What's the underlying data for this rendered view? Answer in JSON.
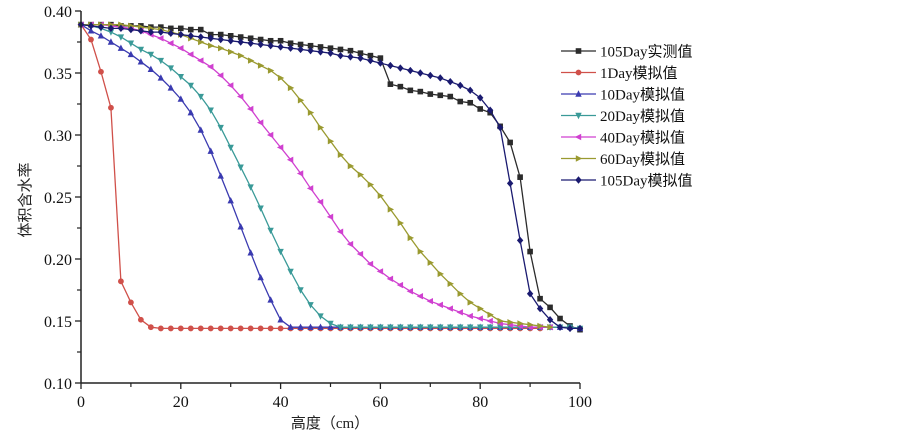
{
  "chart_data": {
    "type": "line",
    "title": "",
    "xlabel": "高度（cm）",
    "ylabel": "体积含水率",
    "xlim": [
      0,
      100
    ],
    "ylim": [
      0.1,
      0.4
    ],
    "xticks": [
      0,
      20,
      40,
      60,
      80,
      100
    ],
    "xtick_labels": [
      "0",
      "20",
      "40",
      "60",
      "80",
      "100"
    ],
    "yticks": [
      0.1,
      0.15,
      0.2,
      0.25,
      0.3,
      0.35,
      0.4
    ],
    "ytick_labels": [
      "0.10",
      "0.15",
      "0.20",
      "0.25",
      "0.30",
      "0.35",
      "0.40"
    ],
    "grid": false,
    "legend_position": "top-right",
    "series": [
      {
        "name": "105Day实测值",
        "color": "#2b2b2b",
        "marker": "square",
        "x": [
          0,
          2,
          4,
          6,
          8,
          10,
          12,
          14,
          16,
          18,
          20,
          22,
          24,
          26,
          28,
          30,
          32,
          34,
          36,
          38,
          40,
          42,
          44,
          46,
          48,
          50,
          52,
          54,
          56,
          58,
          60,
          62,
          64,
          66,
          68,
          70,
          72,
          74,
          76,
          78,
          80,
          82,
          84,
          86,
          88,
          90,
          92,
          94,
          96,
          98,
          100
        ],
        "y": [
          0.389,
          0.389,
          0.389,
          0.389,
          0.388,
          0.388,
          0.388,
          0.387,
          0.387,
          0.386,
          0.386,
          0.385,
          0.385,
          0.381,
          0.381,
          0.38,
          0.379,
          0.378,
          0.377,
          0.376,
          0.376,
          0.374,
          0.373,
          0.372,
          0.371,
          0.37,
          0.369,
          0.368,
          0.366,
          0.364,
          0.362,
          0.341,
          0.339,
          0.336,
          0.335,
          0.333,
          0.332,
          0.331,
          0.327,
          0.326,
          0.321,
          0.318,
          0.307,
          0.294,
          0.266,
          0.206,
          0.168,
          0.161,
          0.152,
          0.146,
          0.143
        ]
      },
      {
        "name": "1Day模拟值",
        "color": "#d0504a",
        "marker": "circle",
        "x": [
          0,
          2,
          4,
          6,
          8,
          10,
          12,
          14,
          16,
          18,
          20,
          22,
          24,
          26,
          28,
          30,
          32,
          34,
          36,
          38,
          40,
          42,
          44,
          46,
          48,
          50,
          52,
          54,
          56,
          58,
          60,
          62,
          64,
          66,
          68,
          70,
          72,
          74,
          76,
          78,
          80,
          82,
          84,
          86,
          88,
          90,
          92
        ],
        "y": [
          0.389,
          0.377,
          0.351,
          0.322,
          0.182,
          0.165,
          0.151,
          0.145,
          0.144,
          0.144,
          0.144,
          0.144,
          0.144,
          0.144,
          0.144,
          0.144,
          0.144,
          0.144,
          0.144,
          0.144,
          0.144,
          0.144,
          0.144,
          0.144,
          0.144,
          0.144,
          0.144,
          0.144,
          0.144,
          0.144,
          0.144,
          0.144,
          0.144,
          0.144,
          0.144,
          0.144,
          0.144,
          0.144,
          0.144,
          0.144,
          0.144,
          0.144,
          0.144,
          0.144,
          0.144,
          0.144,
          0.144
        ]
      },
      {
        "name": "10Day模拟值",
        "color": "#3a3ab0",
        "marker": "triangle-up",
        "x": [
          0,
          2,
          4,
          6,
          8,
          10,
          12,
          14,
          16,
          18,
          20,
          22,
          24,
          26,
          28,
          30,
          32,
          34,
          36,
          38,
          40,
          42,
          44,
          46,
          48,
          50,
          52,
          54,
          56,
          58,
          60,
          62,
          64,
          66,
          68,
          70,
          72,
          74,
          76,
          78,
          80,
          82,
          84,
          86,
          88,
          90,
          92,
          94,
          96,
          98,
          100
        ],
        "y": [
          0.389,
          0.384,
          0.38,
          0.375,
          0.37,
          0.365,
          0.359,
          0.353,
          0.346,
          0.338,
          0.329,
          0.318,
          0.304,
          0.287,
          0.267,
          0.247,
          0.226,
          0.205,
          0.185,
          0.167,
          0.151,
          0.145,
          0.145,
          0.145,
          0.145,
          0.145,
          0.145,
          0.145,
          0.145,
          0.145,
          0.145,
          0.145,
          0.145,
          0.145,
          0.145,
          0.145,
          0.145,
          0.145,
          0.145,
          0.145,
          0.145,
          0.145,
          0.145,
          0.145,
          0.145,
          0.145,
          0.145,
          0.145,
          0.145,
          0.145,
          0.144
        ]
      },
      {
        "name": "20Day模拟值",
        "color": "#3a9a98",
        "marker": "triangle-down",
        "x": [
          0,
          2,
          4,
          6,
          8,
          10,
          12,
          14,
          16,
          18,
          20,
          22,
          24,
          26,
          28,
          30,
          32,
          34,
          36,
          38,
          40,
          42,
          44,
          46,
          48,
          50,
          52,
          54,
          56,
          58,
          60,
          62,
          64,
          66,
          68,
          70,
          72,
          74,
          76,
          78,
          80,
          82,
          84,
          86,
          88,
          90,
          92,
          94,
          96,
          98,
          100
        ],
        "y": [
          0.389,
          0.388,
          0.386,
          0.383,
          0.379,
          0.374,
          0.369,
          0.365,
          0.36,
          0.354,
          0.347,
          0.34,
          0.331,
          0.32,
          0.306,
          0.29,
          0.274,
          0.258,
          0.241,
          0.223,
          0.206,
          0.19,
          0.175,
          0.163,
          0.154,
          0.148,
          0.145,
          0.145,
          0.145,
          0.145,
          0.145,
          0.145,
          0.145,
          0.145,
          0.145,
          0.145,
          0.145,
          0.145,
          0.145,
          0.145,
          0.145,
          0.145,
          0.145,
          0.145,
          0.145,
          0.145,
          0.145,
          0.145,
          0.145,
          0.145,
          0.144
        ]
      },
      {
        "name": "40Day模拟值",
        "color": "#d040d0",
        "marker": "triangle-left",
        "x": [
          0,
          2,
          4,
          6,
          8,
          10,
          12,
          14,
          16,
          18,
          20,
          22,
          24,
          26,
          28,
          30,
          32,
          34,
          36,
          38,
          40,
          42,
          44,
          46,
          48,
          50,
          52,
          54,
          56,
          58,
          60,
          62,
          64,
          66,
          68,
          70,
          72,
          74,
          76,
          78,
          80,
          82,
          84,
          86,
          88,
          90,
          92,
          94
        ],
        "y": [
          0.389,
          0.389,
          0.389,
          0.388,
          0.387,
          0.386,
          0.384,
          0.381,
          0.378,
          0.374,
          0.37,
          0.365,
          0.36,
          0.355,
          0.348,
          0.34,
          0.331,
          0.321,
          0.31,
          0.3,
          0.29,
          0.28,
          0.269,
          0.257,
          0.246,
          0.234,
          0.222,
          0.212,
          0.204,
          0.196,
          0.19,
          0.184,
          0.179,
          0.174,
          0.17,
          0.166,
          0.163,
          0.16,
          0.157,
          0.154,
          0.152,
          0.15,
          0.148,
          0.147,
          0.146,
          0.145,
          0.145,
          0.145
        ]
      },
      {
        "name": "60Day模拟值",
        "color": "#9a9a30",
        "marker": "triangle-right",
        "x": [
          0,
          2,
          4,
          6,
          8,
          10,
          12,
          14,
          16,
          18,
          20,
          22,
          24,
          26,
          28,
          30,
          32,
          34,
          36,
          38,
          40,
          42,
          44,
          46,
          48,
          50,
          52,
          54,
          56,
          58,
          60,
          62,
          64,
          66,
          68,
          70,
          72,
          74,
          76,
          78,
          80,
          82,
          84,
          86,
          88,
          90,
          92,
          94
        ],
        "y": [
          0.389,
          0.389,
          0.389,
          0.389,
          0.389,
          0.388,
          0.387,
          0.386,
          0.385,
          0.383,
          0.381,
          0.378,
          0.375,
          0.372,
          0.37,
          0.367,
          0.364,
          0.36,
          0.356,
          0.352,
          0.346,
          0.338,
          0.328,
          0.318,
          0.306,
          0.295,
          0.284,
          0.275,
          0.268,
          0.26,
          0.251,
          0.24,
          0.229,
          0.217,
          0.206,
          0.197,
          0.188,
          0.18,
          0.172,
          0.165,
          0.16,
          0.155,
          0.15,
          0.149,
          0.148,
          0.147,
          0.146,
          0.145
        ]
      },
      {
        "name": "105Day模拟值",
        "color": "#1a1a70",
        "marker": "diamond",
        "x": [
          0,
          2,
          4,
          6,
          8,
          10,
          12,
          14,
          16,
          18,
          20,
          22,
          24,
          26,
          28,
          30,
          32,
          34,
          36,
          38,
          40,
          42,
          44,
          46,
          48,
          50,
          52,
          54,
          56,
          58,
          60,
          62,
          64,
          66,
          68,
          70,
          72,
          74,
          76,
          78,
          80,
          82,
          84,
          86,
          88,
          90,
          92,
          94,
          96,
          98,
          100
        ],
        "y": [
          0.389,
          0.388,
          0.387,
          0.386,
          0.386,
          0.385,
          0.384,
          0.383,
          0.383,
          0.382,
          0.381,
          0.38,
          0.379,
          0.378,
          0.377,
          0.376,
          0.375,
          0.374,
          0.373,
          0.372,
          0.371,
          0.37,
          0.369,
          0.368,
          0.367,
          0.366,
          0.364,
          0.363,
          0.362,
          0.36,
          0.358,
          0.356,
          0.354,
          0.352,
          0.35,
          0.348,
          0.346,
          0.343,
          0.34,
          0.336,
          0.33,
          0.32,
          0.306,
          0.261,
          0.215,
          0.172,
          0.16,
          0.151,
          0.145,
          0.144,
          0.144
        ]
      }
    ]
  }
}
